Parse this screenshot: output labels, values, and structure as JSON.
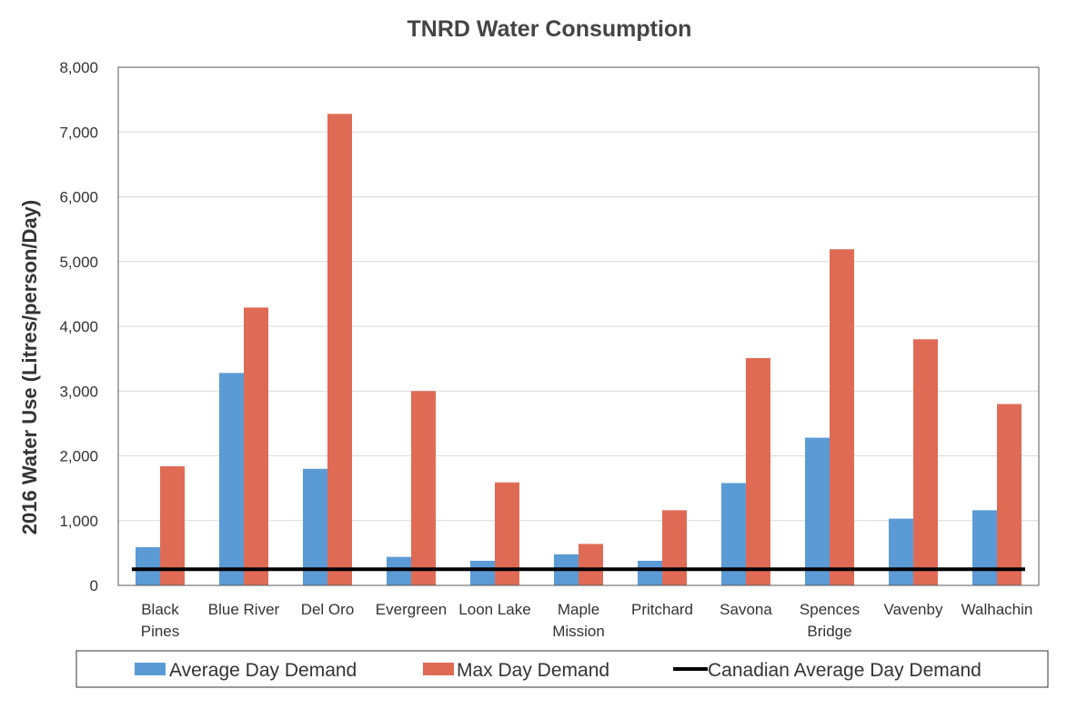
{
  "chart_data": {
    "type": "bar",
    "title": "TNRD Water Consumption",
    "ylabel": "2016 Water Use (Litres/person/Day)",
    "xlabel": "",
    "ylim": [
      0,
      8000
    ],
    "yticks": [
      0,
      1000,
      2000,
      3000,
      4000,
      5000,
      6000,
      7000,
      8000
    ],
    "ytick_labels": [
      "0",
      "1,000",
      "2,000",
      "3,000",
      "4,000",
      "5,000",
      "6,000",
      "7,000",
      "8,000"
    ],
    "grid": true,
    "legend_position": "bottom",
    "categories": [
      [
        "Black",
        "Pines"
      ],
      [
        "Blue River"
      ],
      [
        "Del Oro"
      ],
      [
        "Evergreen"
      ],
      [
        "Loon Lake"
      ],
      [
        "Maple",
        "Mission"
      ],
      [
        "Pritchard"
      ],
      [
        "Savona"
      ],
      [
        "Spences",
        "Bridge"
      ],
      [
        "Vavenby"
      ],
      [
        "Walhachin"
      ]
    ],
    "series": [
      {
        "name": "Average Day Demand",
        "color": "#5B9BD5",
        "values": [
          590,
          3280,
          1800,
          440,
          380,
          480,
          380,
          1580,
          2280,
          1030,
          1160
        ]
      },
      {
        "name": "Max Day Demand",
        "color": "#E06B55",
        "values": [
          1840,
          4290,
          7280,
          3000,
          1590,
          640,
          1160,
          3510,
          5190,
          3800,
          2800
        ]
      }
    ],
    "reference_line": {
      "name": "Canadian Average Day Demand",
      "value": 250,
      "color": "#000000"
    }
  }
}
